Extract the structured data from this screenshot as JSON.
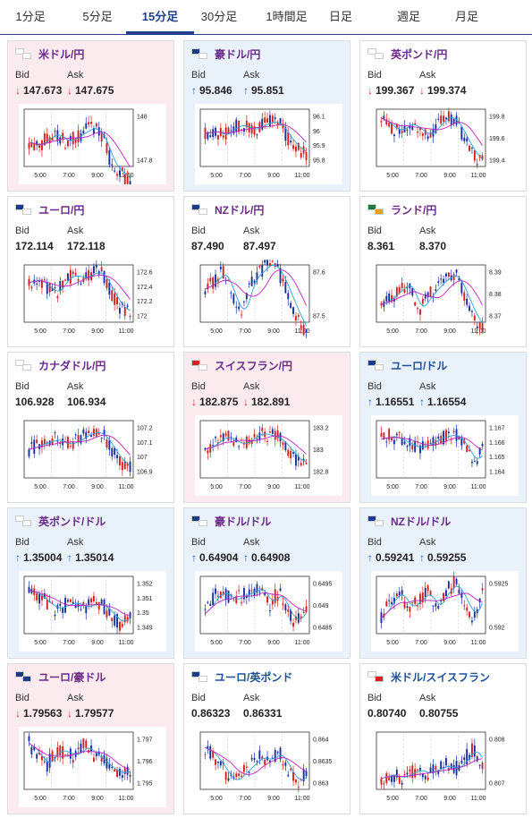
{
  "tabs": [
    "1分足",
    "5分足",
    "15分足",
    "30分足",
    "1時間足",
    "日足",
    "週足",
    "月足"
  ],
  "active_tab": 2,
  "labels": {
    "bid": "Bid",
    "ask": "Ask"
  },
  "x_ticks": [
    "5:00",
    "7:00",
    "9:00",
    "11:00"
  ],
  "pairs": [
    {
      "name": "米ドル/円",
      "color": "purple",
      "bg": "pink",
      "bid": "147.673",
      "ask": "147.675",
      "dir": "down",
      "flag": [
        "#fff",
        "#fff"
      ],
      "yticks": [
        "148",
        "147.8"
      ],
      "trend": [
        147.88,
        147.86,
        147.9,
        147.92,
        147.88,
        147.9,
        147.93,
        147.95,
        147.9,
        147.78,
        147.74,
        147.7
      ]
    },
    {
      "name": "豪ドル/円",
      "color": "purple",
      "bg": "blue",
      "bid": "95.846",
      "ask": "95.851",
      "dir": "up",
      "flag": [
        "#1a3a8a",
        "#fff"
      ],
      "yticks": [
        "96.1",
        "96",
        "95.9",
        "95.8"
      ],
      "trend": [
        95.98,
        96.0,
        95.96,
        96.02,
        96.04,
        96.0,
        96.03,
        96.06,
        96.05,
        95.95,
        95.88,
        95.84
      ]
    },
    {
      "name": "英ポンド/円",
      "color": "purple",
      "bg": "white",
      "bid": "199.367",
      "ask": "199.374",
      "dir": "down",
      "flag": [
        "#fff",
        "#fff"
      ],
      "yticks": [
        "199.8",
        "199.6",
        "199.4"
      ],
      "trend": [
        199.78,
        199.7,
        199.66,
        199.74,
        199.68,
        199.62,
        199.7,
        199.8,
        199.76,
        199.6,
        199.45,
        199.38
      ]
    },
    {
      "name": "ユーロ/円",
      "color": "purple",
      "bg": "white",
      "bid": "172.114",
      "ask": "172.118",
      "dir": "",
      "flag": [
        "#1a3a8a",
        "#fff"
      ],
      "yticks": [
        "172.6",
        "172.4",
        "172.2",
        "172"
      ],
      "trend": [
        172.45,
        172.5,
        172.38,
        172.3,
        172.52,
        172.55,
        172.5,
        172.6,
        172.55,
        172.3,
        172.1,
        172.05
      ]
    },
    {
      "name": "NZドル/円",
      "color": "purple",
      "bg": "white",
      "bid": "87.490",
      "ask": "87.497",
      "dir": "",
      "flag": [
        "#1a3a8a",
        "#fff"
      ],
      "yticks": [
        "87.6",
        "87.5"
      ],
      "trend": [
        87.56,
        87.58,
        87.6,
        87.54,
        87.5,
        87.58,
        87.6,
        87.62,
        87.6,
        87.55,
        87.5,
        87.46
      ]
    },
    {
      "name": "ランド/円",
      "color": "purple",
      "bg": "white",
      "bid": "8.361",
      "ask": "8.370",
      "dir": "",
      "flag": [
        "#1a7a3a",
        "#e8a020"
      ],
      "yticks": [
        "8.39",
        "8.38",
        "8.37"
      ],
      "trend": [
        8.375,
        8.378,
        8.382,
        8.385,
        8.372,
        8.378,
        8.383,
        8.387,
        8.389,
        8.38,
        8.37,
        8.364
      ]
    },
    {
      "name": "カナダドル/円",
      "color": "purple",
      "bg": "white",
      "bid": "106.928",
      "ask": "106.934",
      "dir": "",
      "flag": [
        "#fff",
        "#fff"
      ],
      "yticks": [
        "107.2",
        "107.1",
        "107",
        "106.9"
      ],
      "trend": [
        107.05,
        107.08,
        107.1,
        107.12,
        107.08,
        107.1,
        107.14,
        107.17,
        107.15,
        107.05,
        106.96,
        106.93
      ]
    },
    {
      "name": "スイスフラン/円",
      "color": "purple",
      "bg": "pink",
      "bid": "182.875",
      "ask": "182.891",
      "dir": "down",
      "flag": [
        "#d92020",
        "#fff"
      ],
      "yticks": [
        "183.2",
        "183",
        "182.8"
      ],
      "trend": [
        183.0,
        183.05,
        183.12,
        183.08,
        183.04,
        183.1,
        183.15,
        183.12,
        183.1,
        183.0,
        182.9,
        182.88
      ]
    },
    {
      "name": "ユーロ/ドル",
      "color": "blue",
      "bg": "blue",
      "bid": "1.16551",
      "ask": "1.16554",
      "dir": "up",
      "flag": [
        "#1a3a8a",
        "#fff"
      ],
      "yticks": [
        "1.167",
        "1.166",
        "1.165",
        "1.164"
      ],
      "trend": [
        1.1662,
        1.1664,
        1.1662,
        1.1658,
        1.1656,
        1.1658,
        1.1662,
        1.1664,
        1.1665,
        1.1658,
        1.1646,
        1.1654
      ]
    },
    {
      "name": "英ポンド/ドル",
      "color": "purple",
      "bg": "blue",
      "bid": "1.35004",
      "ask": "1.35014",
      "dir": "up",
      "flag": [
        "#fff",
        "#fff"
      ],
      "yticks": [
        "1.352",
        "1.351",
        "1.35",
        "1.349"
      ],
      "trend": [
        1.3515,
        1.3512,
        1.3506,
        1.3502,
        1.3505,
        1.3507,
        1.3503,
        1.3506,
        1.3505,
        1.3498,
        1.3492,
        1.35
      ]
    },
    {
      "name": "豪ドル/ドル",
      "color": "purple",
      "bg": "blue",
      "bid": "0.64904",
      "ask": "0.64908",
      "dir": "up",
      "flag": [
        "#1a3a8a",
        "#fff"
      ],
      "yticks": [
        "0.6495",
        "0.649",
        "0.6485"
      ],
      "trend": [
        0.6488,
        0.6492,
        0.6493,
        0.6491,
        0.6492,
        0.6493,
        0.6494,
        0.649,
        0.6493,
        0.6488,
        0.6486,
        0.649
      ]
    },
    {
      "name": "NZドル/ドル",
      "color": "purple",
      "bg": "blue",
      "bid": "0.59241",
      "ask": "0.59255",
      "dir": "up",
      "flag": [
        "#1a3a8a",
        "#fff"
      ],
      "yticks": [
        "0.5925",
        "0.592"
      ],
      "trend": [
        0.5921,
        0.5923,
        0.5924,
        0.5922,
        0.5923,
        0.5924,
        0.5922,
        0.5924,
        0.5925,
        0.5923,
        0.5921,
        0.5924
      ]
    },
    {
      "name": "ユーロ/豪ドル",
      "color": "purple",
      "bg": "pink",
      "bid": "1.79563",
      "ask": "1.79577",
      "dir": "down",
      "flag": [
        "#1a3a8a",
        "#1a3a8a"
      ],
      "yticks": [
        "1.797",
        "1.796",
        "1.795"
      ],
      "trend": [
        1.7968,
        1.7962,
        1.7958,
        1.7965,
        1.7964,
        1.7962,
        1.7967,
        1.7963,
        1.796,
        1.7956,
        1.7954,
        1.7956
      ]
    },
    {
      "name": "ユーロ/英ポンド",
      "color": "blue",
      "bg": "white",
      "bid": "0.86323",
      "ask": "0.86331",
      "dir": "",
      "flag": [
        "#1a3a8a",
        "#fff"
      ],
      "yticks": [
        "0.864",
        "0.8635",
        "0.863"
      ],
      "trend": [
        0.8638,
        0.8636,
        0.8633,
        0.863,
        0.8632,
        0.8634,
        0.8636,
        0.8635,
        0.8637,
        0.8633,
        0.863,
        0.8632
      ]
    },
    {
      "name": "米ドル/スイスフラン",
      "color": "blue",
      "bg": "white",
      "bid": "0.80740",
      "ask": "0.80755",
      "dir": "",
      "flag": [
        "#fff",
        "#d92020"
      ],
      "yticks": [
        "0.808",
        "0.807"
      ],
      "trend": [
        0.8071,
        0.8072,
        0.8071,
        0.8072,
        0.8073,
        0.8072,
        0.8073,
        0.8074,
        0.8073,
        0.8075,
        0.8078,
        0.8074
      ]
    }
  ]
}
